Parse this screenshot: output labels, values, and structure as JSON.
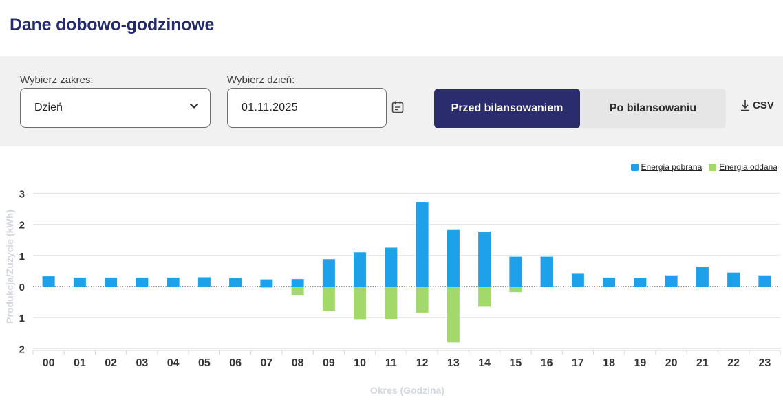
{
  "page": {
    "title": "Dane dobowo-godzinowe"
  },
  "filters": {
    "range_label": "Wybierz zakres:",
    "range_value": "Dzień",
    "day_label": "Wybierz dzień:",
    "day_value": "01.11.2025",
    "toggle_active": "Przed bilansowaniem",
    "toggle_inactive": "Po bilansowaniu",
    "csv_label": "CSV"
  },
  "colors": {
    "pobrana": "#1da1e8",
    "oddana": "#a3d86a",
    "title": "#242a6b",
    "toggle_active": "#2a2c6e"
  },
  "chart_data": {
    "type": "bar",
    "title": "",
    "xlabel": "Okres (Godzina)",
    "ylabel": "Produkcja/Zużycie (kWh)",
    "ylim": [
      -2,
      3
    ],
    "yticks": [
      3,
      2,
      1,
      0,
      -1,
      -2
    ],
    "ytick_labels": [
      "3",
      "2",
      "1",
      "0",
      "1",
      "2"
    ],
    "grid": true,
    "legend_position": "top-right",
    "categories": [
      "00",
      "01",
      "02",
      "03",
      "04",
      "05",
      "06",
      "07",
      "08",
      "09",
      "10",
      "11",
      "12",
      "13",
      "14",
      "15",
      "16",
      "17",
      "18",
      "19",
      "20",
      "21",
      "22",
      "23"
    ],
    "series": [
      {
        "name": "Energia pobrana",
        "color": "#1da1e8",
        "values": [
          0.33,
          0.29,
          0.29,
          0.29,
          0.29,
          0.3,
          0.27,
          0.23,
          0.24,
          0.88,
          1.1,
          1.25,
          2.72,
          1.82,
          1.77,
          0.96,
          0.96,
          0.41,
          0.29,
          0.28,
          0.36,
          0.64,
          0.45,
          0.36
        ]
      },
      {
        "name": "Energia oddana",
        "color": "#a3d86a",
        "values": [
          0,
          0,
          0,
          0,
          0,
          0,
          0,
          -0.04,
          -0.29,
          -0.78,
          -1.07,
          -1.04,
          -0.84,
          -1.8,
          -0.65,
          -0.18,
          0,
          0,
          0,
          0,
          0,
          0,
          0,
          0
        ]
      }
    ]
  }
}
